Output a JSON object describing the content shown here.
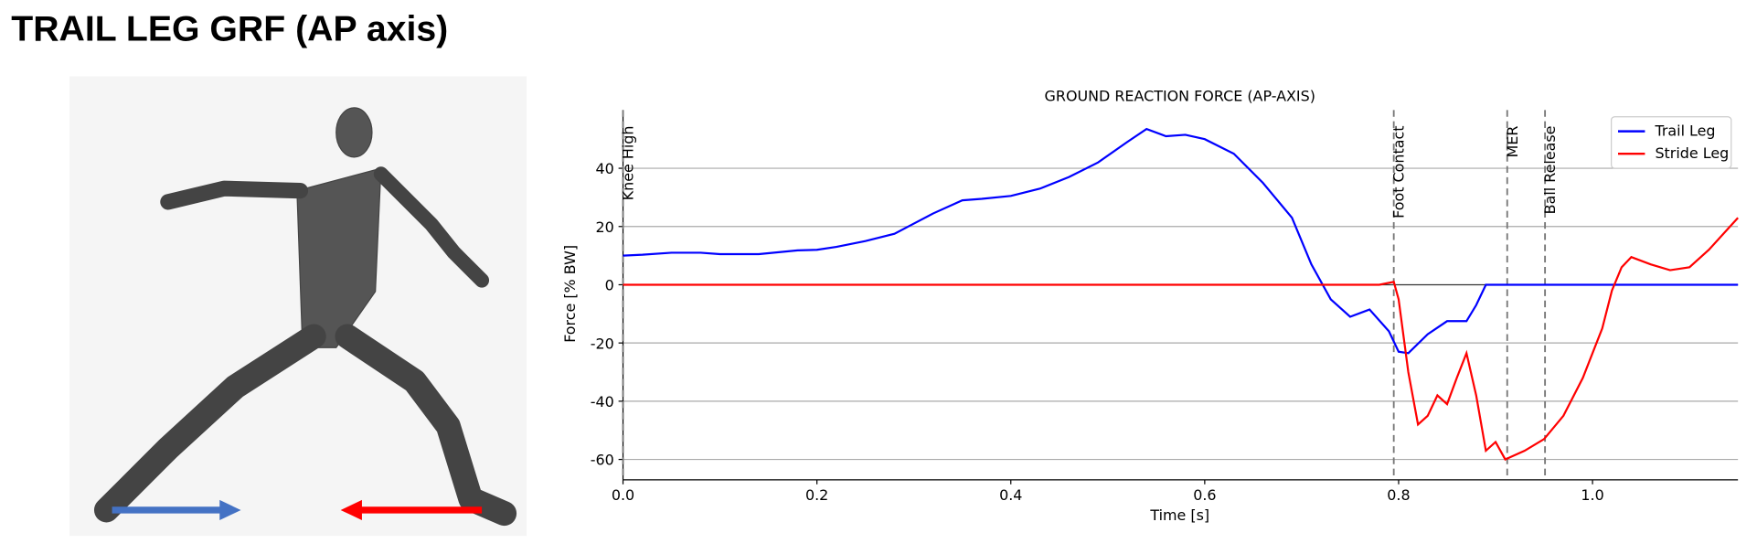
{
  "page_title": "TRAIL LEG GRF (AP axis)",
  "chart_data": {
    "type": "line",
    "title": "GROUND REACTION FORCE (AP-AXIS)",
    "x_label": "Time [s]",
    "y_label": "Force [% BW]",
    "xlim": [
      0,
      1.15
    ],
    "ylim": [
      -67,
      60
    ],
    "xticks": [
      {
        "value": 0,
        "label": "0.0"
      },
      0.2,
      0.4,
      0.6,
      0.8,
      {
        "value": 1,
        "label": "1.0"
      }
    ],
    "yticks": [
      -60,
      -40,
      -20,
      0,
      20,
      40
    ],
    "grid": true,
    "legend": "upper right",
    "series": [
      {
        "name": "Trail Leg",
        "color": "#0000ff",
        "x": [
          0,
          0.02,
          0.05,
          0.08,
          0.1,
          0.14,
          0.18,
          0.2,
          0.22,
          0.25,
          0.28,
          0.3,
          0.32,
          0.35,
          0.37,
          0.4,
          0.43,
          0.46,
          0.49,
          0.52,
          0.54,
          0.56,
          0.58,
          0.6,
          0.63,
          0.66,
          0.69,
          0.71,
          0.73,
          0.75,
          0.77,
          0.79,
          0.8,
          0.81,
          0.83,
          0.85,
          0.87,
          0.88,
          0.89,
          0.91,
          1.15
        ],
        "values": [
          10,
          10.3,
          11,
          11,
          10.5,
          10.5,
          11.8,
          12,
          13,
          15,
          17.5,
          21,
          24.5,
          29,
          29.5,
          30.5,
          33,
          37,
          42,
          49,
          53.5,
          51,
          51.5,
          50,
          45,
          35,
          23,
          7,
          -5,
          -11,
          -8.5,
          -16,
          -23,
          -23.5,
          -17,
          -12.5,
          -12.5,
          -7,
          0,
          0,
          0
        ]
      },
      {
        "name": "Stride Leg",
        "color": "#ff0000",
        "x": [
          0,
          0.78,
          0.795,
          0.8,
          0.81,
          0.82,
          0.83,
          0.84,
          0.85,
          0.86,
          0.87,
          0.88,
          0.89,
          0.9,
          0.91,
          0.93,
          0.95,
          0.97,
          0.99,
          1.01,
          1.02,
          1.03,
          1.04,
          1.06,
          1.08,
          1.1,
          1.12,
          1.15
        ],
        "values": [
          0,
          0,
          1,
          -5,
          -30,
          -48,
          -45,
          -38,
          -41,
          -32,
          -23.5,
          -38,
          -57,
          -54,
          -60,
          -57,
          -53,
          -45,
          -32,
          -15,
          -2,
          6,
          9.5,
          7,
          5,
          6,
          12,
          23
        ]
      }
    ],
    "events": [
      {
        "label": "Knee High",
        "x": 0
      },
      {
        "label": "Foot Contact",
        "x": 0.795
      },
      {
        "label": "MER",
        "x": 0.912
      },
      {
        "label": "Ball Release",
        "x": 0.951
      }
    ]
  }
}
